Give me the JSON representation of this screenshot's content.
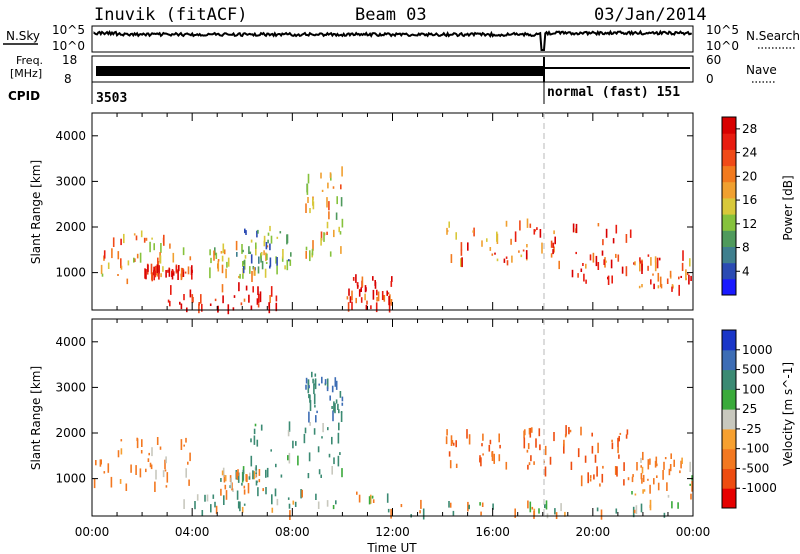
{
  "header": {
    "station": "Inuvik (fitACF)",
    "beam": "Beam 03",
    "date": "03/Jan/2014"
  },
  "strip_labels": {
    "nsky": "N.Sky",
    "nsearch": "N.Search",
    "freq_top": "Freq.",
    "freq_unit": "[MHz]",
    "nave": "Nave",
    "cpid": "CPID"
  },
  "strip_ticks": {
    "nsky_top": "10^5",
    "nsky_bottom": "10^0",
    "nsearch_top": "10^5",
    "nsearch_bottom": "10^0",
    "freq_top": "18",
    "freq_bottom": "8",
    "nave_top": "60",
    "nave_bottom": "0"
  },
  "cpid_labels": {
    "first": "3503",
    "second": "normal (fast) 151"
  },
  "x_axis": {
    "label": "Time UT",
    "ticks": [
      "00:00",
      "04:00",
      "08:00",
      "12:00",
      "16:00",
      "20:00",
      "00:00"
    ]
  },
  "y_axis": {
    "label": "Slant Range [km]",
    "ticks": [
      "1000",
      "2000",
      "3000",
      "4000"
    ]
  },
  "power_colorbar": {
    "label": "Power [dB]",
    "ticks": [
      "4",
      "8",
      "12",
      "16",
      "20",
      "24",
      "28"
    ],
    "colors": [
      "#1a1aff",
      "#2b4bb3",
      "#3f7f8e",
      "#4f9a5c",
      "#86c23c",
      "#d8c83a",
      "#f0a030",
      "#f27a1e",
      "#f04a18",
      "#e81c10",
      "#d80000"
    ]
  },
  "velocity_colorbar": {
    "label": "Velocity [m s^-1]",
    "ticks": [
      "1000",
      "500",
      "100",
      "25",
      "-25",
      "-100",
      "-500",
      "-1000"
    ],
    "colors": [
      "#1a36c8",
      "#3d6db5",
      "#3b8a73",
      "#3aaa3a",
      "#c8c8be",
      "#f6a030",
      "#f37820",
      "#ee4c10",
      "#e60000"
    ]
  },
  "chart_data": {
    "type": "heatmap",
    "title": "Inuvik (fitACF)  Beam 03  03/Jan/2014",
    "xlabel": "Time UT",
    "ylabel": "Slant Range [km]",
    "xlim": [
      0,
      24
    ],
    "ylim": [
      180,
      4500
    ],
    "transition_time_hours": 18.0,
    "cpid_segments": [
      {
        "start": 0,
        "end": 18.0,
        "label": "3503"
      },
      {
        "start": 18.0,
        "end": 24,
        "label": "normal (fast) 151"
      }
    ],
    "power_panel": {
      "quantity": "Power",
      "unit": "dB",
      "range": [
        0,
        30
      ],
      "echo_regions": [
        {
          "t0": 0.0,
          "t1": 4.0,
          "r0": 800,
          "r1": 1900,
          "value": 18
        },
        {
          "t0": 2.0,
          "t1": 4.0,
          "r0": 900,
          "r1": 1100,
          "value": 26
        },
        {
          "t0": 3.0,
          "t1": 7.5,
          "r0": 180,
          "r1": 700,
          "value": 28
        },
        {
          "t0": 4.5,
          "t1": 7.0,
          "r0": 900,
          "r1": 1600,
          "value": 14
        },
        {
          "t0": 6.0,
          "t1": 8.0,
          "r0": 1000,
          "r1": 2000,
          "value": 10
        },
        {
          "t0": 8.5,
          "t1": 10.0,
          "r0": 1300,
          "r1": 3300,
          "value": 16
        },
        {
          "t0": 10.0,
          "t1": 12.0,
          "r0": 180,
          "r1": 900,
          "value": 26
        },
        {
          "t0": 14.0,
          "t1": 18.0,
          "r0": 1200,
          "r1": 2100,
          "value": 22
        },
        {
          "t0": 18.0,
          "t1": 21.5,
          "r0": 800,
          "r1": 2100,
          "value": 24
        },
        {
          "t0": 21.5,
          "t1": 24.0,
          "r0": 600,
          "r1": 1400,
          "value": 22
        }
      ]
    },
    "velocity_panel": {
      "quantity": "Velocity",
      "unit": "m s^-1",
      "range": [
        -1000,
        1000
      ],
      "echo_regions": [
        {
          "t0": 0.0,
          "t1": 4.0,
          "r0": 800,
          "r1": 1900,
          "value": -150
        },
        {
          "t0": 3.5,
          "t1": 12.0,
          "r0": 180,
          "r1": 700,
          "value": 60
        },
        {
          "t0": 5.0,
          "t1": 7.0,
          "r0": 700,
          "r1": 1200,
          "value": 0
        },
        {
          "t0": 6.0,
          "t1": 10.0,
          "r0": 1000,
          "r1": 2200,
          "value": 150
        },
        {
          "t0": 8.5,
          "t1": 10.0,
          "r0": 2200,
          "r1": 3300,
          "value": 250
        },
        {
          "t0": 14.0,
          "t1": 18.0,
          "r0": 1200,
          "r1": 2100,
          "value": -300
        },
        {
          "t0": 18.0,
          "t1": 21.5,
          "r0": 800,
          "r1": 2100,
          "value": -350
        },
        {
          "t0": 21.5,
          "t1": 24.0,
          "r0": 600,
          "r1": 1500,
          "value": -100
        },
        {
          "t0": 12.0,
          "t1": 24.0,
          "r0": 180,
          "r1": 450,
          "value": 10
        }
      ]
    }
  }
}
